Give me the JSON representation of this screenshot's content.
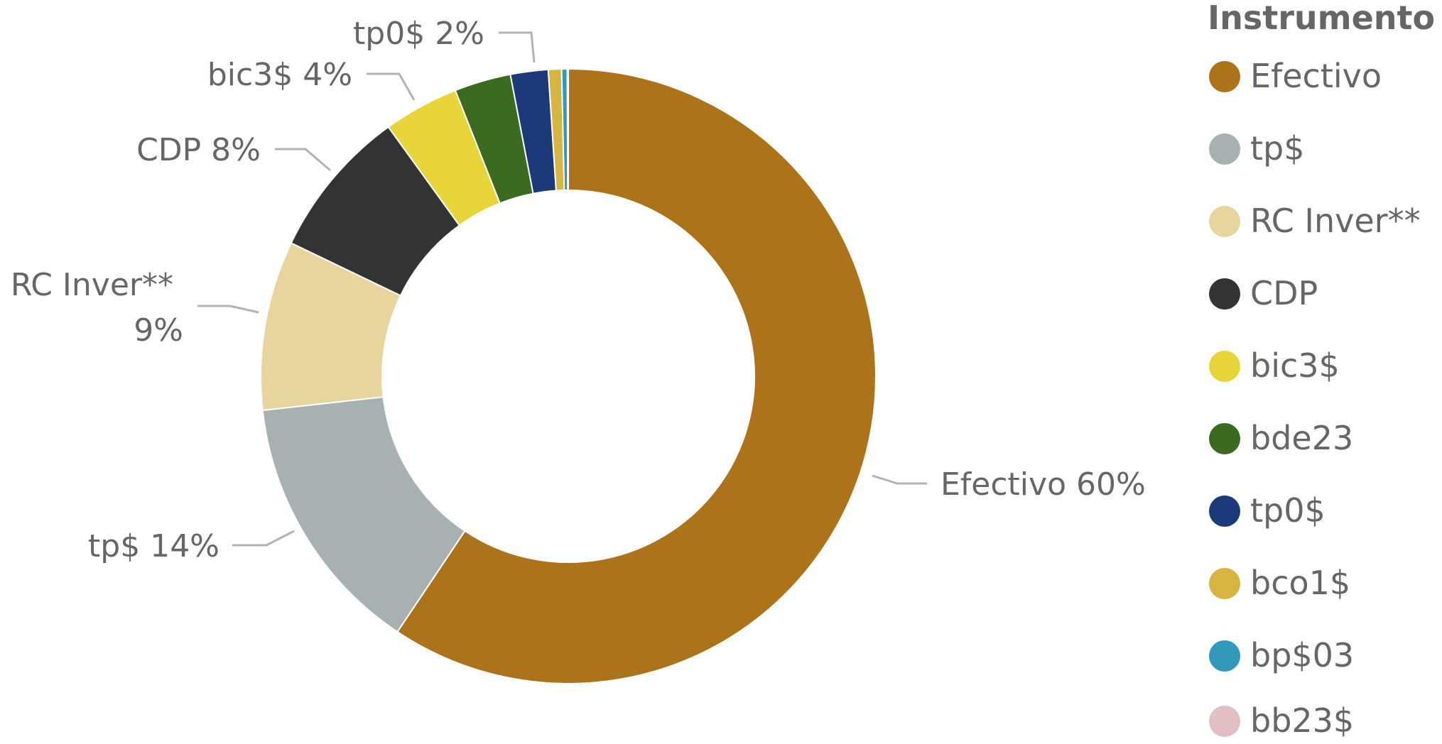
{
  "chart_data": {
    "type": "pie",
    "variant": "donut",
    "legend_title": "Instrumento",
    "legend_position": "right",
    "slices": [
      {
        "name": "Efectivo",
        "value": 60,
        "label": "Efectivo 60%",
        "color": "#AD731B"
      },
      {
        "name": "tp$",
        "value": 14,
        "label": "tp$ 14%",
        "color": "#A7B1B2"
      },
      {
        "name": "RC Inver**",
        "value": 9,
        "label": "RC Inver** 9%",
        "color": "#E8D59E"
      },
      {
        "name": "CDP",
        "value": 8,
        "label": "CDP 8%",
        "color": "#333333"
      },
      {
        "name": "bic3$",
        "value": 4,
        "label": "bic3$ 4%",
        "color": "#E8D53A"
      },
      {
        "name": "bde23",
        "value": 3,
        "label": "",
        "color": "#3C6A1E"
      },
      {
        "name": "tp0$",
        "value": 2,
        "label": "tp0$ 2%",
        "color": "#1C3A7A"
      },
      {
        "name": "bco1$",
        "value": 0.7,
        "label": "",
        "color": "#D8B440"
      },
      {
        "name": "bp$03",
        "value": 0.3,
        "label": "",
        "color": "#3399BB"
      },
      {
        "name": "bb23$",
        "value": 0.05,
        "label": "",
        "color": "#E3BEC2"
      }
    ]
  }
}
